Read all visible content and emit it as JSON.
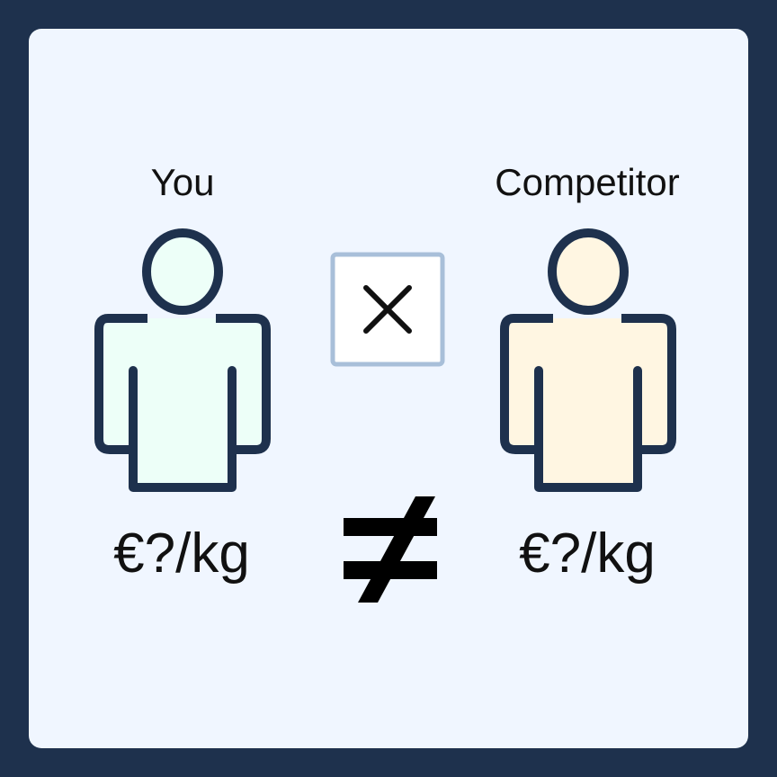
{
  "persons": [
    {
      "name": "You",
      "price": "€?/kg",
      "fill": "#edfff8",
      "icon": "person-icon"
    },
    {
      "name": "Competitor",
      "price": "€?/kg",
      "fill": "#fff6e2",
      "icon": "person-icon"
    }
  ],
  "center": {
    "multiply_symbol": "×",
    "not_equal_symbol": "≠"
  },
  "colors": {
    "frame": "#1e314d",
    "background": "#f0f6ff",
    "outline": "#1e314d",
    "box_border": "#a8bfd9"
  }
}
